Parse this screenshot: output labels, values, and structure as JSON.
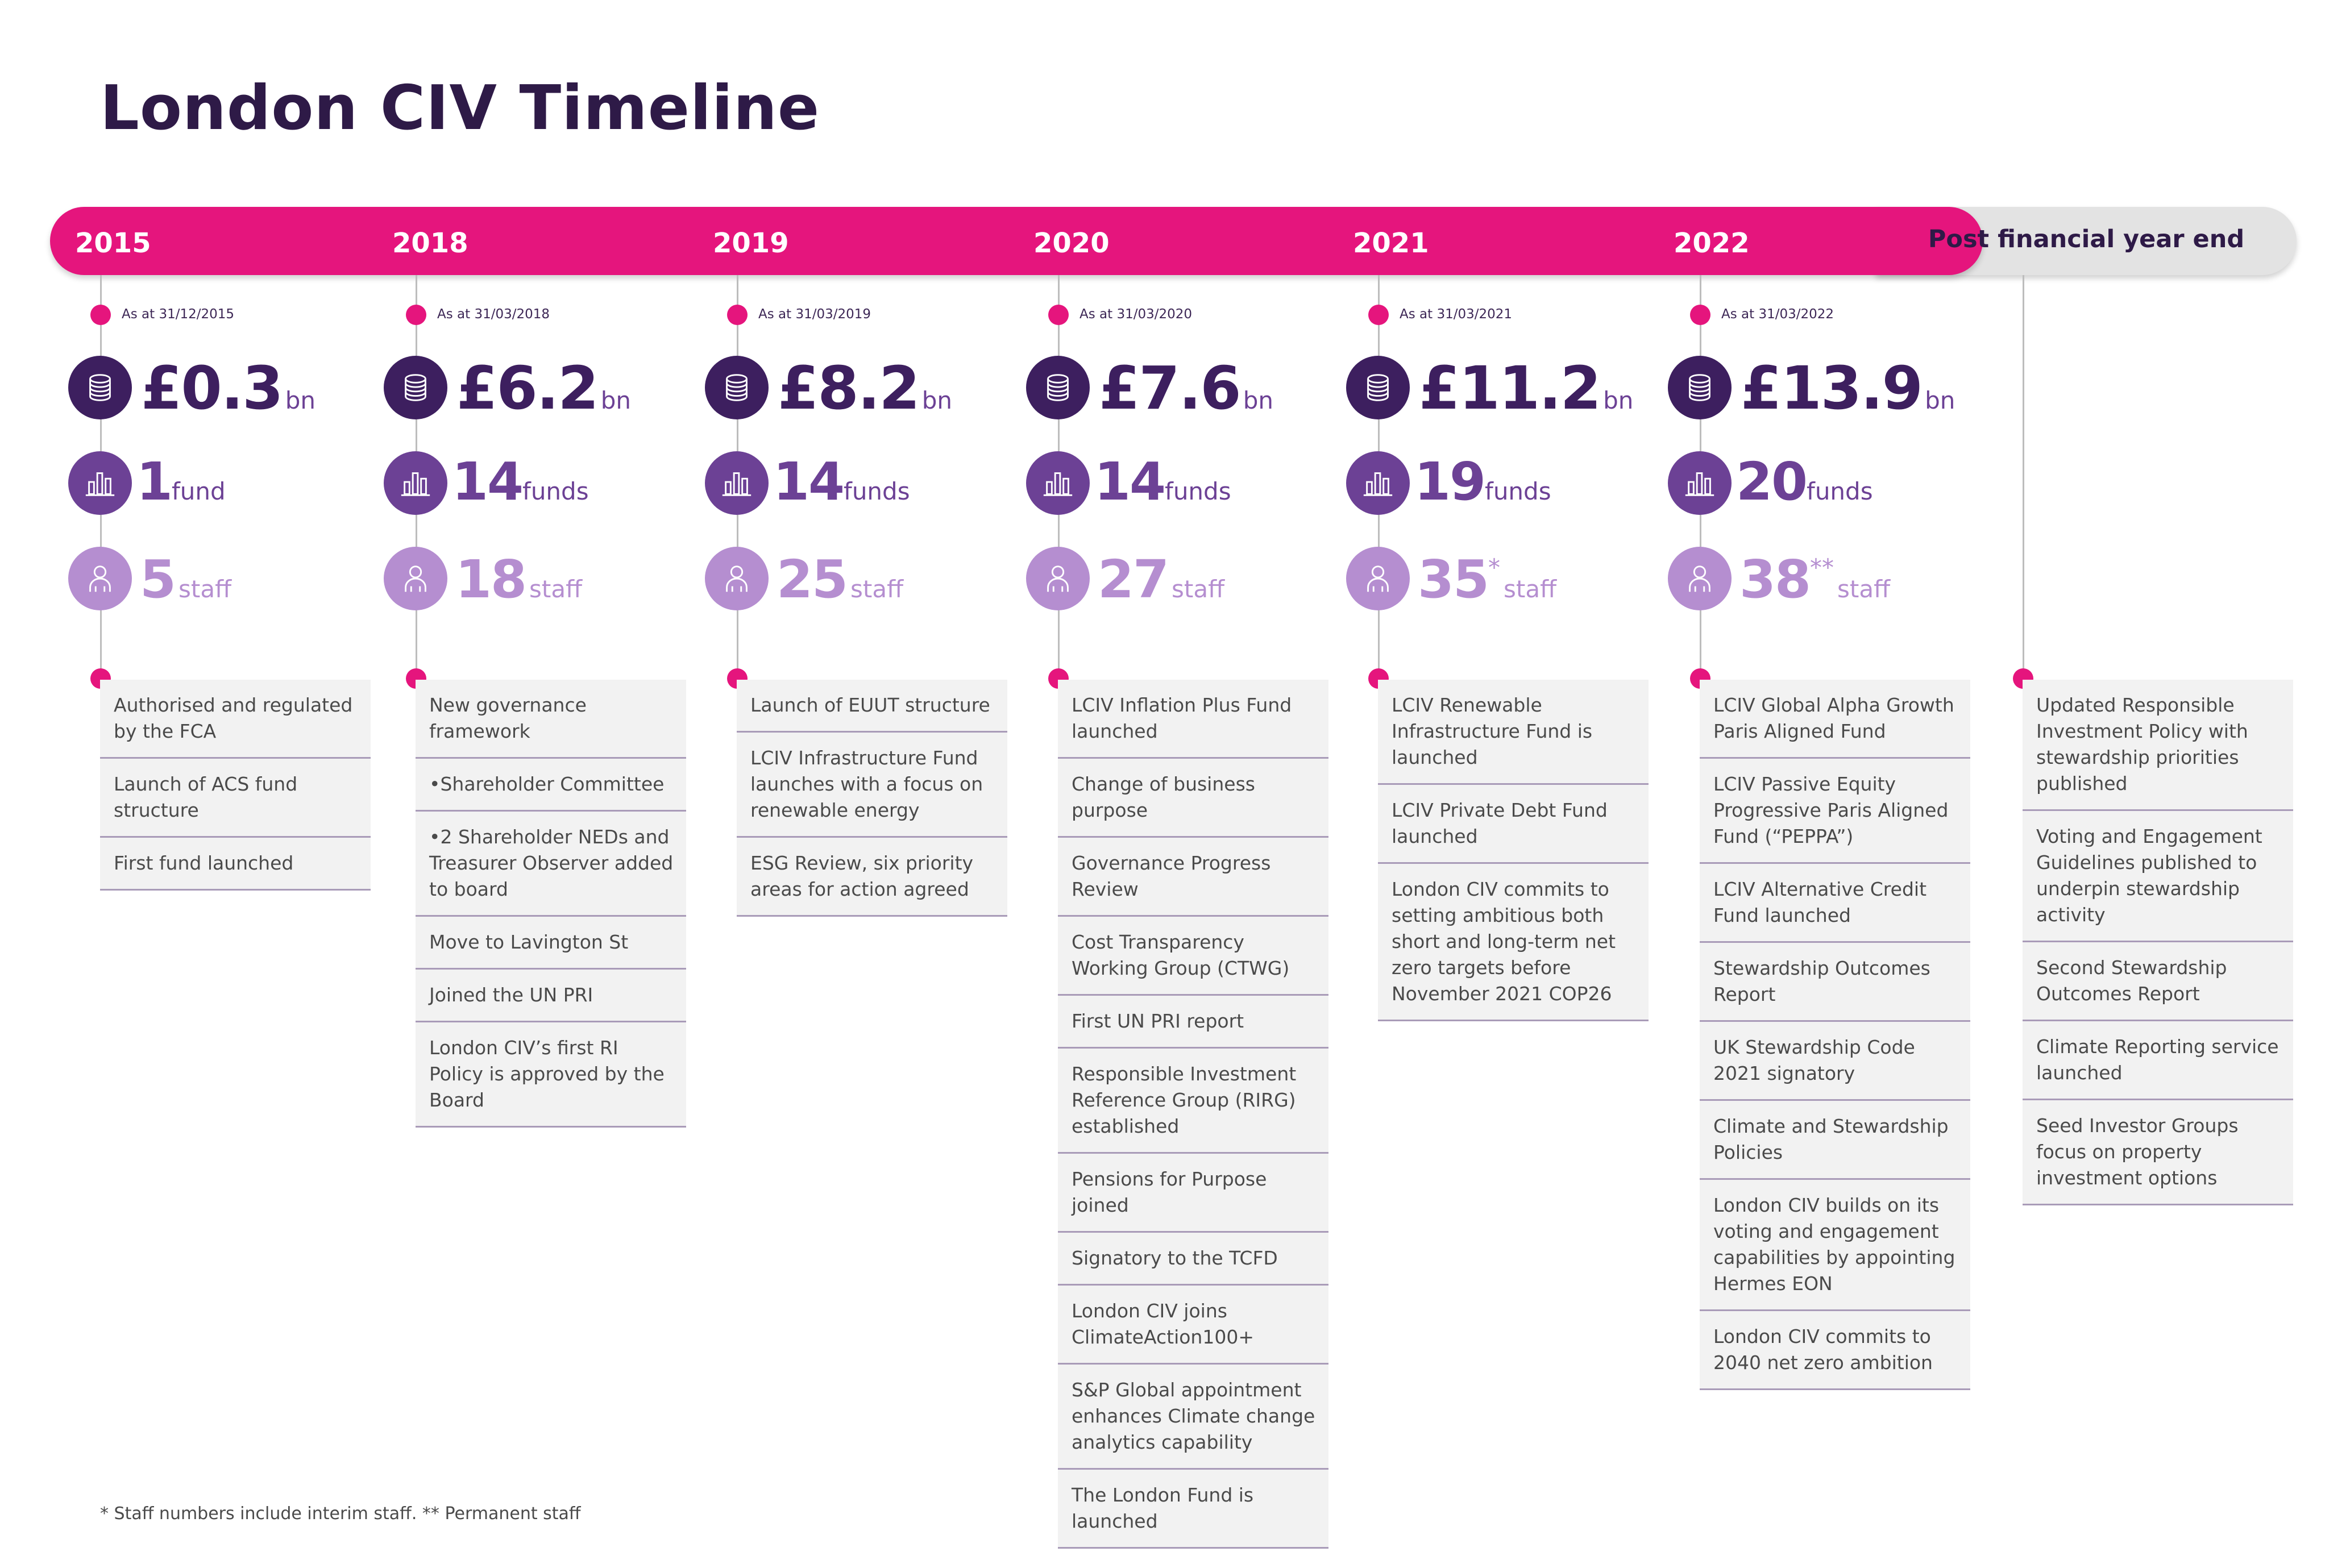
{
  "title": "London CIV Timeline",
  "post_label": "Post financial year end",
  "columns": [
    {
      "year": "2015",
      "as_at": "As at 31/12/2015",
      "aum": "£0.3",
      "aum_unit": "bn",
      "funds": "1",
      "funds_unit": "fund",
      "staff": "5",
      "staff_mark": "",
      "staff_unit": "staff",
      "items": [
        "Authorised and regulated by the FCA",
        "Launch of ACS fund structure",
        "First fund launched"
      ]
    },
    {
      "year": "2018",
      "as_at": "As at 31/03/2018",
      "aum": "£6.2",
      "aum_unit": "bn",
      "funds": "14",
      "funds_unit": "funds",
      "staff": "18",
      "staff_mark": "",
      "staff_unit": "staff",
      "items": [
        "New governance framework",
        "•Shareholder Committee",
        "•2 Shareholder NEDs and Treasurer Observer added to board",
        "Move to Lavington St",
        "Joined the UN PRI",
        "London CIV’s first RI Policy is approved by the Board"
      ]
    },
    {
      "year": "2019",
      "as_at": "As at 31/03/2019",
      "aum": "£8.2",
      "aum_unit": "bn",
      "funds": "14",
      "funds_unit": "funds",
      "staff": "25",
      "staff_mark": "",
      "staff_unit": "staff",
      "items": [
        "Launch of EUUT structure",
        "LCIV Infrastructure Fund launches with a focus on renewable energy",
        "ESG Review, six priority areas for action agreed"
      ]
    },
    {
      "year": "2020",
      "as_at": "As at 31/03/2020",
      "aum": "£7.6",
      "aum_unit": "bn",
      "funds": "14",
      "funds_unit": "funds",
      "staff": "27",
      "staff_mark": "",
      "staff_unit": "staff",
      "items": [
        "LCIV Inflation Plus Fund launched",
        "Change of business purpose",
        "Governance Progress Review",
        "Cost Transparency Working Group (CTWG)",
        "First UN PRI report",
        "Responsible Investment Reference Group (RIRG) established",
        "Pensions for Purpose joined",
        "Signatory to the TCFD",
        "London CIV joins ClimateAction100+",
        "S&P Global appointment enhances Climate change analytics capability",
        "The London Fund is launched"
      ]
    },
    {
      "year": "2021",
      "as_at": "As at 31/03/2021",
      "aum": "£11.2",
      "aum_unit": "bn",
      "funds": "19",
      "funds_unit": "funds",
      "staff": "35",
      "staff_mark": "*",
      "staff_unit": "staff",
      "items": [
        "LCIV Renewable Infrastructure Fund is launched",
        "LCIV Private Debt Fund launched",
        "London CIV commits to setting ambitious both short and long-term net zero targets before November 2021 COP26"
      ]
    },
    {
      "year": "2022",
      "as_at": "As at 31/03/2022",
      "aum": "£13.9",
      "aum_unit": "bn",
      "funds": "20",
      "funds_unit": "funds",
      "staff": "38",
      "staff_mark": "**",
      "staff_unit": "staff",
      "items": [
        "LCIV Global Alpha Growth Paris Aligned Fund",
        "LCIV Passive Equity Progressive Paris Aligned Fund (“PEPPA”)",
        "LCIV Alternative Credit Fund launched",
        "Stewardship Outcomes Report",
        "UK Stewardship Code 2021 signatory",
        "Climate and Stewardship Policies",
        "London CIV builds on its voting and engagement capabilities by appointing Hermes EON",
        "London CIV commits to 2040 net zero ambition"
      ]
    }
  ],
  "post_items": [
    "Updated Responsible Investment Policy with stewardship priorities published",
    "Voting and Engagement Guidelines published to underpin stewardship activity",
    "Second Stewardship Outcomes Report",
    "Climate Reporting service launched",
    "Seed Investor Groups focus on property investment options"
  ],
  "footnote": "* Staff numbers include interim staff. ** Permanent staff",
  "colors": {
    "pink": "#e5157d",
    "dark_purple": "#3d1f5f",
    "mid_purple": "#6c4195",
    "light_purple": "#b58ed0",
    "grey_bar": "#e3e3e3"
  },
  "icons": [
    "coins-icon",
    "bar-chart-icon",
    "person-icon"
  ]
}
